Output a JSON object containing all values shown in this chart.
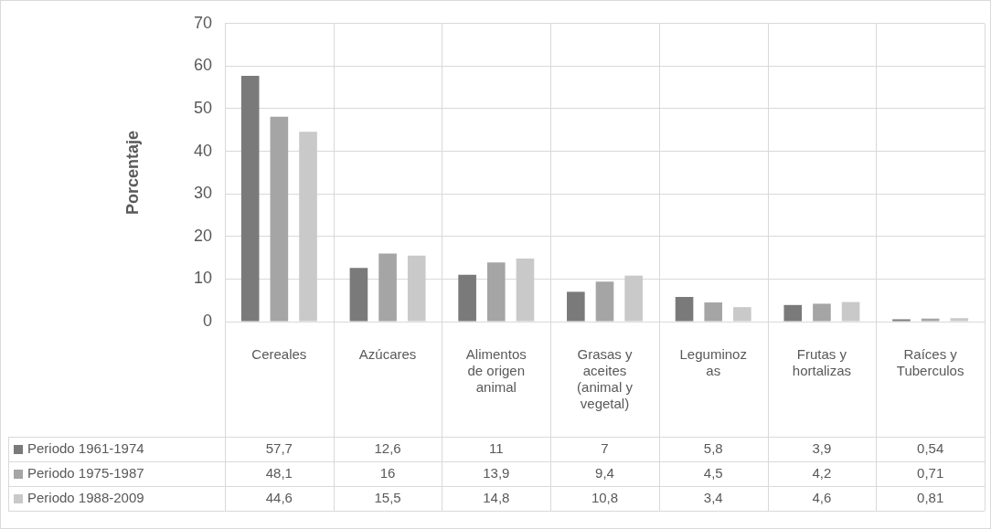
{
  "chart_data": {
    "type": "bar",
    "ylabel": "Porcentaje",
    "categories": [
      "Cereales",
      "Azúcares",
      "Alimentos de origen animal",
      "Grasas y aceites (animal y vegetal)",
      "Leguminozas",
      "Frutas y hortalizas",
      "Raíces y Tuberculos"
    ],
    "series": [
      {
        "name": "Periodo 1961-1974",
        "color": "#7a7a7a",
        "values": [
          57.7,
          12.6,
          11,
          7,
          5.8,
          3.9,
          0.54
        ],
        "value_labels": [
          "57,7",
          "12,6",
          "11",
          "7",
          "5,8",
          "3,9",
          "0,54"
        ]
      },
      {
        "name": "Periodo 1975-1987",
        "color": "#a5a5a5",
        "values": [
          48.1,
          16,
          13.9,
          9.4,
          4.5,
          4.2,
          0.71
        ],
        "value_labels": [
          "48,1",
          "16",
          "13,9",
          "9,4",
          "4,5",
          "4,2",
          "0,71"
        ]
      },
      {
        "name": "Periodo 1988-2009",
        "color": "#c9c9c9",
        "values": [
          44.6,
          15.5,
          14.8,
          10.8,
          3.4,
          4.6,
          0.81
        ],
        "value_labels": [
          "44,6",
          "15,5",
          "14,8",
          "10,8",
          "3,4",
          "4,6",
          "0,81"
        ]
      }
    ],
    "ylim": [
      0,
      70
    ],
    "yticks": [
      0,
      10,
      20,
      30,
      40,
      50,
      60,
      70
    ],
    "grid": true,
    "legend": "bottom"
  }
}
